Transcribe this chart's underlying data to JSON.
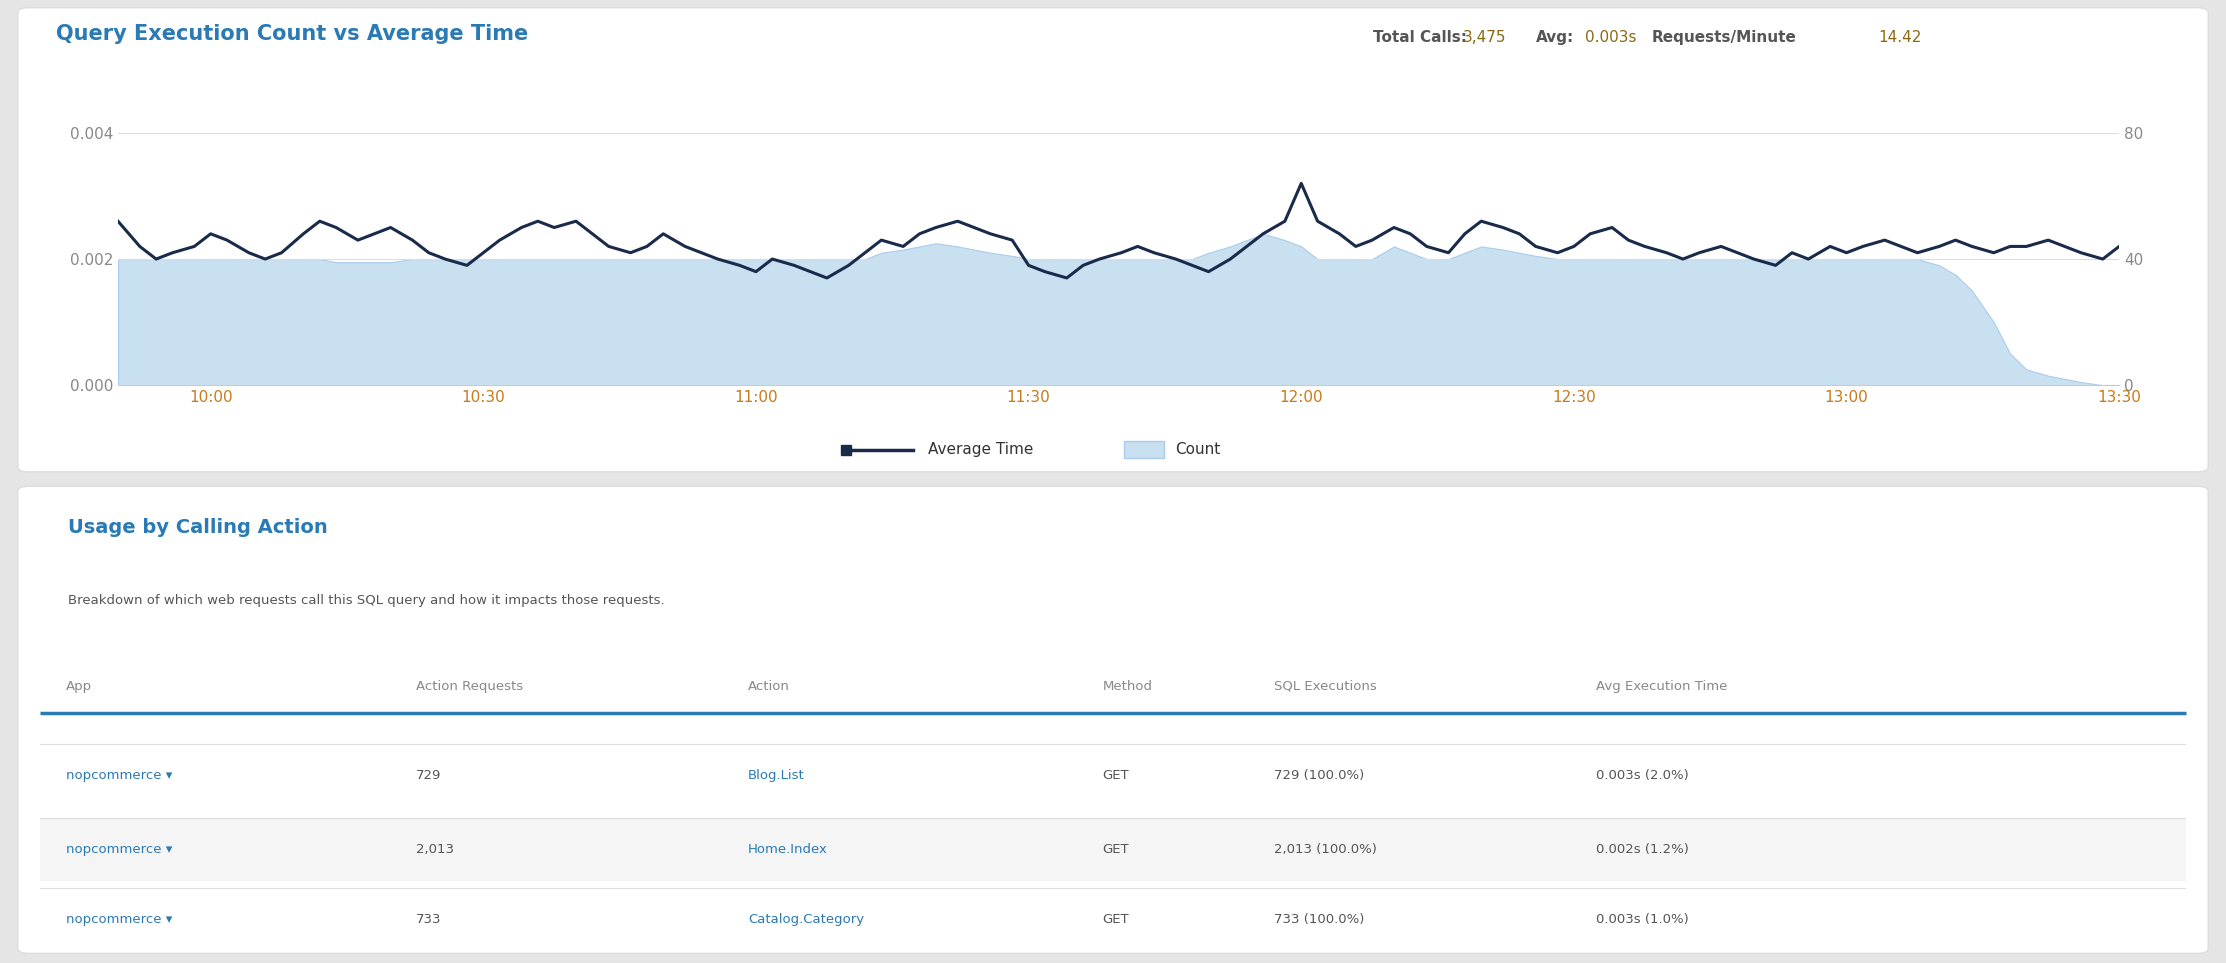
{
  "title": "Query Execution Count vs Average Time",
  "panel_bg": "#ffffff",
  "outer_bg": "#e5e5e5",
  "title_color": "#2a7ab5",
  "stats_label_color": "#555555",
  "stats_value_color": "#8b6914",
  "left_ylim": [
    0,
    0.004
  ],
  "right_ylim": [
    0,
    80
  ],
  "left_yticks": [
    0,
    0.002,
    0.004
  ],
  "right_yticks": [
    0,
    40,
    80
  ],
  "xtick_labels": [
    "10:00",
    "10:30",
    "11:00",
    "11:30",
    "12:00",
    "12:30",
    "13:00",
    "13:30"
  ],
  "xtick_positions": [
    10.0,
    10.5,
    11.0,
    11.5,
    12.0,
    12.5,
    13.0,
    13.5
  ],
  "xtick_color": "#c97a1a",
  "ytick_color": "#888888",
  "grid_color": "#dddddd",
  "line_color": "#1a2a4a",
  "fill_color": "#c8e0f0",
  "fill_edge_color": "#aaccee",
  "table_title": "Usage by Calling Action",
  "table_subtitle": "Breakdown of which web requests call this SQL query and how it impacts those requests.",
  "table_title_color": "#2a7ab5",
  "table_subtitle_color": "#555555",
  "col_headers": [
    "App",
    "Action Requests",
    "Action",
    "Method",
    "SQL Executions",
    "Avg Execution Time"
  ],
  "header_line_color": "#2a7ab5",
  "row_alt_bg": "#f5f5f5",
  "row_bg": "#ffffff",
  "rows": [
    [
      "nopcommerce ▾",
      "729",
      "Blog.List",
      "GET",
      "729 (100.0%)",
      "0.003s (2.0%)"
    ],
    [
      "nopcommerce ▾",
      "2,013",
      "Home.Index",
      "GET",
      "2,013 (100.0%)",
      "0.002s (1.2%)"
    ],
    [
      "nopcommerce ▾",
      "733",
      "Catalog.Category",
      "GET",
      "733 (100.0%)",
      "0.003s (1.0%)"
    ]
  ],
  "app_col_color": "#2a7ab5",
  "action_col_color": "#2a7ab5",
  "data_col_color": "#555555",
  "header_col_color": "#888888",
  "time_points": [
    9.83,
    9.87,
    9.9,
    9.93,
    9.97,
    10.0,
    10.03,
    10.07,
    10.1,
    10.13,
    10.17,
    10.2,
    10.23,
    10.27,
    10.3,
    10.33,
    10.37,
    10.4,
    10.43,
    10.47,
    10.5,
    10.53,
    10.57,
    10.6,
    10.63,
    10.67,
    10.7,
    10.73,
    10.77,
    10.8,
    10.83,
    10.87,
    10.9,
    10.93,
    10.97,
    11.0,
    11.03,
    11.07,
    11.1,
    11.13,
    11.17,
    11.2,
    11.23,
    11.27,
    11.3,
    11.33,
    11.37,
    11.4,
    11.43,
    11.47,
    11.5,
    11.53,
    11.57,
    11.6,
    11.63,
    11.67,
    11.7,
    11.73,
    11.77,
    11.8,
    11.83,
    11.87,
    11.9,
    11.93,
    11.97,
    12.0,
    12.03,
    12.07,
    12.1,
    12.13,
    12.17,
    12.2,
    12.23,
    12.27,
    12.3,
    12.33,
    12.37,
    12.4,
    12.43,
    12.47,
    12.5,
    12.53,
    12.57,
    12.6,
    12.63,
    12.67,
    12.7,
    12.73,
    12.77,
    12.8,
    12.83,
    12.87,
    12.9,
    12.93,
    12.97,
    13.0,
    13.03,
    13.07,
    13.1,
    13.13,
    13.17,
    13.2,
    13.23,
    13.27,
    13.3,
    13.33,
    13.37,
    13.4,
    13.43,
    13.47,
    13.5
  ],
  "avg_time": [
    0.0026,
    0.0022,
    0.002,
    0.0021,
    0.0022,
    0.0024,
    0.0023,
    0.0021,
    0.002,
    0.0021,
    0.0024,
    0.0026,
    0.0025,
    0.0023,
    0.0024,
    0.0025,
    0.0023,
    0.0021,
    0.002,
    0.0019,
    0.0021,
    0.0023,
    0.0025,
    0.0026,
    0.0025,
    0.0026,
    0.0024,
    0.0022,
    0.0021,
    0.0022,
    0.0024,
    0.0022,
    0.0021,
    0.002,
    0.0019,
    0.0018,
    0.002,
    0.0019,
    0.0018,
    0.0017,
    0.0019,
    0.0021,
    0.0023,
    0.0022,
    0.0024,
    0.0025,
    0.0026,
    0.0025,
    0.0024,
    0.0023,
    0.0019,
    0.0018,
    0.0017,
    0.0019,
    0.002,
    0.0021,
    0.0022,
    0.0021,
    0.002,
    0.0019,
    0.0018,
    0.002,
    0.0022,
    0.0024,
    0.0026,
    0.0032,
    0.0026,
    0.0024,
    0.0022,
    0.0023,
    0.0025,
    0.0024,
    0.0022,
    0.0021,
    0.0024,
    0.0026,
    0.0025,
    0.0024,
    0.0022,
    0.0021,
    0.0022,
    0.0024,
    0.0025,
    0.0023,
    0.0022,
    0.0021,
    0.002,
    0.0021,
    0.0022,
    0.0021,
    0.002,
    0.0019,
    0.0021,
    0.002,
    0.0022,
    0.0021,
    0.0022,
    0.0023,
    0.0022,
    0.0021,
    0.0022,
    0.0023,
    0.0022,
    0.0021,
    0.0022,
    0.0022,
    0.0023,
    0.0022,
    0.0021,
    0.002,
    0.0022
  ],
  "count": [
    40,
    40,
    40,
    40,
    40,
    40,
    40,
    40,
    40,
    40,
    40,
    40,
    39,
    39,
    39,
    39,
    40,
    40,
    40,
    40,
    40,
    40,
    40,
    40,
    40,
    40,
    40,
    40,
    40,
    40,
    40,
    40,
    40,
    40,
    40,
    40,
    40,
    40,
    40,
    40,
    40,
    40,
    42,
    43,
    44,
    45,
    44,
    43,
    42,
    41,
    40,
    40,
    40,
    40,
    40,
    40,
    40,
    40,
    40,
    40,
    42,
    44,
    46,
    48,
    46,
    44,
    40,
    40,
    40,
    40,
    44,
    42,
    40,
    40,
    42,
    44,
    43,
    42,
    41,
    40,
    40,
    40,
    40,
    40,
    40,
    40,
    40,
    40,
    40,
    40,
    40,
    40,
    40,
    40,
    40,
    40,
    40,
    40,
    40,
    40,
    38,
    35,
    30,
    20,
    10,
    5,
    3,
    2,
    1,
    0,
    0
  ],
  "col_x_fractions": [
    0.012,
    0.175,
    0.33,
    0.495,
    0.575,
    0.725
  ]
}
